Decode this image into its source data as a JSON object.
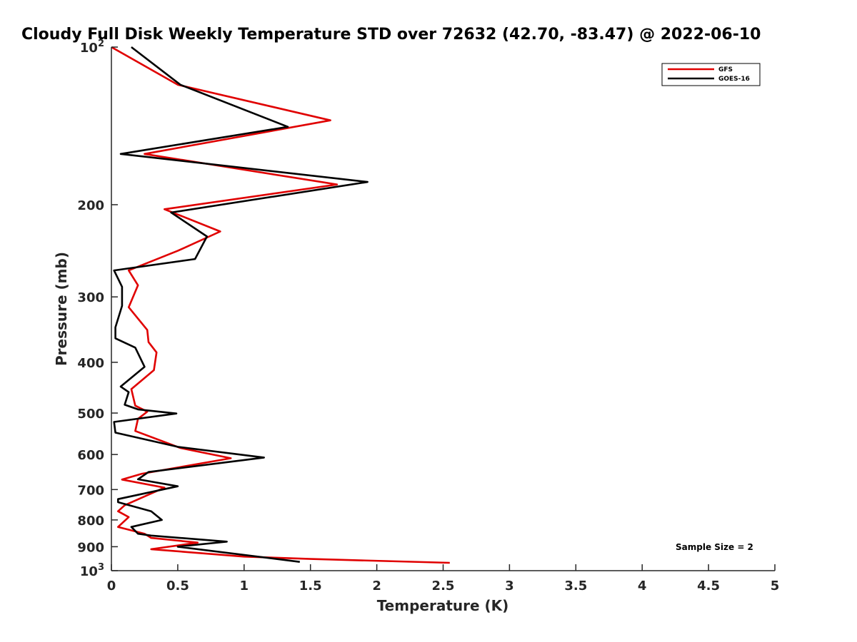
{
  "chart_data": {
    "type": "line",
    "title": "Cloudy Full Disk Weekly Temperature STD over 72632 (42.70, -83.47) @ 2022-06-10",
    "xlabel": "Temperature (K)",
    "ylabel": "Pressure (mb)",
    "xlim": [
      0,
      5
    ],
    "ylim": [
      100,
      1000
    ],
    "y_scale": "log",
    "y_reversed": true,
    "grid": false,
    "legend_position": "top-right",
    "x_ticks": [
      "0",
      "0.5",
      "1",
      "1.5",
      "2",
      "2.5",
      "3",
      "3.5",
      "4",
      "4.5",
      "5"
    ],
    "x_tick_values": [
      0,
      0.5,
      1,
      1.5,
      2,
      2.5,
      3,
      3.5,
      4,
      4.5,
      5
    ],
    "y_ticks": [
      {
        "value": 100,
        "base": "10",
        "exp": "2"
      },
      {
        "value": 200,
        "label": "200"
      },
      {
        "value": 300,
        "label": "300"
      },
      {
        "value": 400,
        "label": "400"
      },
      {
        "value": 500,
        "label": "500"
      },
      {
        "value": 600,
        "label": "600"
      },
      {
        "value": 700,
        "label": "700"
      },
      {
        "value": 800,
        "label": "800"
      },
      {
        "value": 900,
        "label": "900"
      },
      {
        "value": 1000,
        "base": "10",
        "exp": "3"
      }
    ],
    "annotation": "Sample Size = 2",
    "series": [
      {
        "name": "GFS",
        "color": "#e00000",
        "points": [
          [
            0.0,
            100
          ],
          [
            0.5,
            118
          ],
          [
            1.65,
            138
          ],
          [
            0.25,
            160
          ],
          [
            1.7,
            183
          ],
          [
            0.4,
            204
          ],
          [
            0.82,
            225
          ],
          [
            0.5,
            245
          ],
          [
            0.13,
            267
          ],
          [
            0.2,
            285
          ],
          [
            0.13,
            314
          ],
          [
            0.27,
            347
          ],
          [
            0.28,
            366
          ],
          [
            0.34,
            383
          ],
          [
            0.32,
            414
          ],
          [
            0.15,
            450
          ],
          [
            0.18,
            484
          ],
          [
            0.27,
            497
          ],
          [
            0.2,
            513
          ],
          [
            0.18,
            541
          ],
          [
            0.52,
            583
          ],
          [
            0.9,
            610
          ],
          [
            0.23,
            653
          ],
          [
            0.08,
            670
          ],
          [
            0.4,
            694
          ],
          [
            0.1,
            750
          ],
          [
            0.05,
            770
          ],
          [
            0.13,
            790
          ],
          [
            0.05,
            825
          ],
          [
            0.25,
            850
          ],
          [
            0.3,
            866
          ],
          [
            0.65,
            884
          ],
          [
            0.3,
            910
          ],
          [
            1.0,
            940
          ],
          [
            1.5,
            950
          ],
          [
            2.55,
            966
          ]
        ]
      },
      {
        "name": "GOES-16",
        "color": "#000000",
        "points": [
          [
            0.15,
            100
          ],
          [
            0.52,
            118
          ],
          [
            1.33,
            142
          ],
          [
            0.07,
            160
          ],
          [
            1.93,
            181
          ],
          [
            0.45,
            207
          ],
          [
            0.72,
            230
          ],
          [
            0.63,
            254
          ],
          [
            0.02,
            267
          ],
          [
            0.08,
            287
          ],
          [
            0.08,
            312
          ],
          [
            0.03,
            343
          ],
          [
            0.03,
            360
          ],
          [
            0.18,
            375
          ],
          [
            0.25,
            408
          ],
          [
            0.07,
            445
          ],
          [
            0.13,
            456
          ],
          [
            0.1,
            482
          ],
          [
            0.2,
            492
          ],
          [
            0.49,
            501
          ],
          [
            0.02,
            520
          ],
          [
            0.03,
            545
          ],
          [
            0.5,
            580
          ],
          [
            1.15,
            608
          ],
          [
            0.28,
            648
          ],
          [
            0.2,
            669
          ],
          [
            0.5,
            690
          ],
          [
            0.05,
            730
          ],
          [
            0.05,
            740
          ],
          [
            0.3,
            770
          ],
          [
            0.38,
            800
          ],
          [
            0.15,
            825
          ],
          [
            0.2,
            850
          ],
          [
            0.3,
            857
          ],
          [
            0.87,
            880
          ],
          [
            0.5,
            900
          ],
          [
            1.42,
            962
          ]
        ]
      }
    ]
  }
}
